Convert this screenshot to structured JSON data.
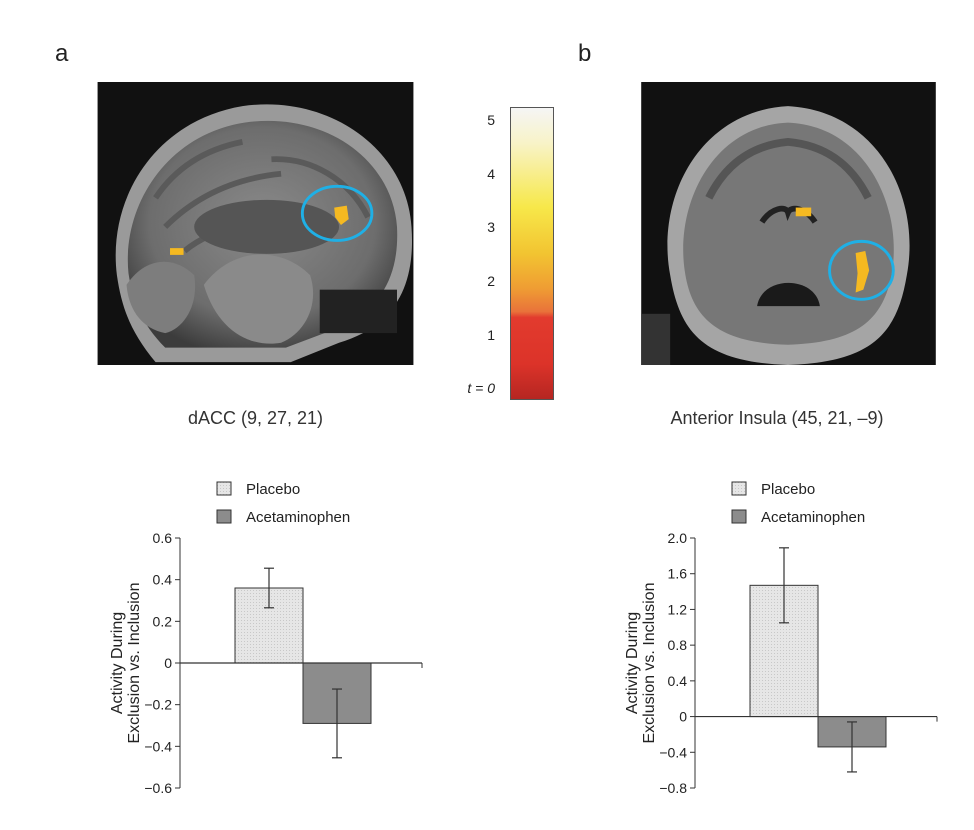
{
  "panel_a": {
    "letter": "a",
    "caption": "dACC (9, 27, 21)"
  },
  "panel_b": {
    "letter": "b",
    "caption": "Anterior Insula (45, 21, –9)"
  },
  "colorbar": {
    "ticks": [
      "5",
      "4",
      "3",
      "2",
      "1",
      "t = 0"
    ],
    "colors": [
      "#ffffff",
      "#f7e84a",
      "#ef9d33",
      "#dc3329",
      "#b52622"
    ]
  },
  "chart_data": [
    {
      "type": "bar",
      "categories": [
        "Placebo",
        "Acetaminophen"
      ],
      "values": [
        0.36,
        -0.29
      ],
      "error": [
        0.095,
        0.165
      ],
      "ylabel": "Activity During Exclusion vs. Inclusion",
      "ylim": [
        -0.6,
        0.6
      ],
      "yticks": [
        "0.6",
        "0.4",
        "0.2",
        "0",
        "−0.2",
        "−0.4",
        "−0.6"
      ],
      "ytick_values": [
        0.6,
        0.4,
        0.2,
        0,
        -0.2,
        -0.4,
        -0.6
      ],
      "legend": [
        "Placebo",
        "Acetaminophen"
      ],
      "colors": [
        "#e6e6e6",
        "#8c8c8c"
      ]
    },
    {
      "type": "bar",
      "categories": [
        "Placebo",
        "Acetaminophen"
      ],
      "values": [
        1.47,
        -0.34
      ],
      "error": [
        0.42,
        0.28
      ],
      "ylabel": "Activity During Exclusion vs. Inclusion",
      "ylim": [
        -0.8,
        2.0
      ],
      "yticks": [
        "2.0",
        "1.6",
        "1.2",
        "0.8",
        "0.4",
        "0",
        "−0.4",
        "−0.8"
      ],
      "ytick_values": [
        2.0,
        1.6,
        1.2,
        0.8,
        0.4,
        0,
        -0.4,
        -0.8
      ],
      "legend": [
        "Placebo",
        "Acetaminophen"
      ],
      "colors": [
        "#e6e6e6",
        "#8c8c8c"
      ]
    }
  ]
}
